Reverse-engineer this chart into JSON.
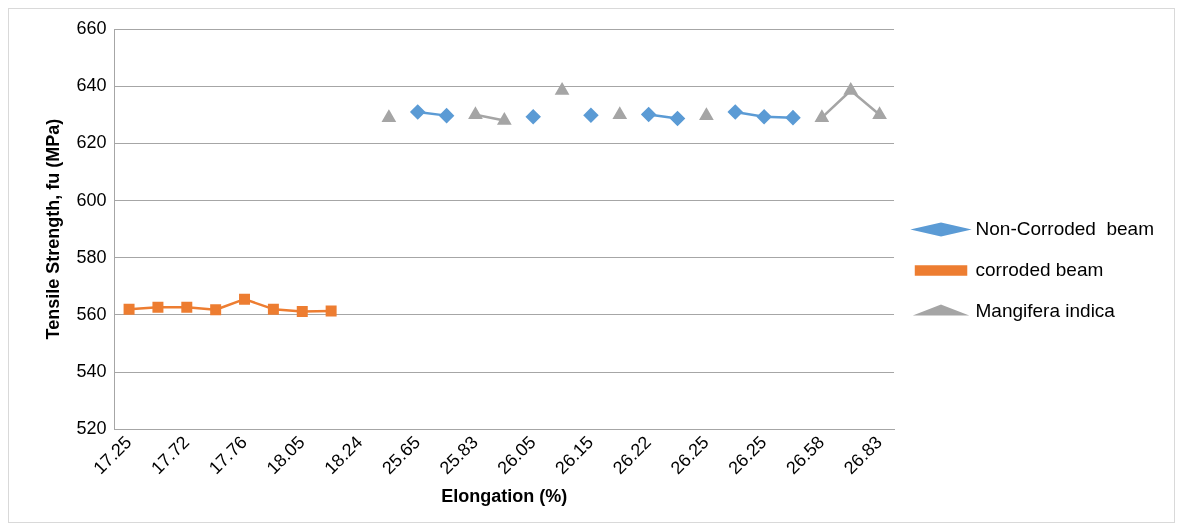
{
  "chart_data": {
    "type": "line",
    "xlabel": "Elongation (%)",
    "ylabel": "Tensile Strength, fu (MPa)",
    "categories": [
      "17.25",
      null,
      "17.72",
      null,
      "17.76",
      null,
      "18.05",
      null,
      "18.24",
      null,
      "25.65",
      null,
      "25.83",
      null,
      "26.05",
      null,
      "26.15",
      null,
      "26.22",
      null,
      "26.25",
      null,
      "26.25",
      null,
      "26.58",
      null,
      "26.83"
    ],
    "series": [
      {
        "name": "Non-Corroded  beam",
        "color": "#5b9bd5",
        "marker": "diamond",
        "values": [
          null,
          null,
          null,
          null,
          null,
          null,
          null,
          null,
          null,
          null,
          631,
          629.7,
          null,
          null,
          629.3,
          null,
          629.8,
          null,
          630.1,
          628.7,
          null,
          631,
          629.3,
          629,
          null,
          null,
          null
        ]
      },
      {
        "name": "corroded beam",
        "color": "#ed7d31",
        "marker": "square",
        "values": [
          562,
          562.7,
          562.7,
          561.8,
          565.5,
          562,
          561.2,
          561.4,
          null,
          null,
          null,
          null,
          null,
          null,
          null,
          null,
          null,
          null,
          null,
          null,
          null,
          null,
          null,
          null,
          null,
          null,
          null
        ]
      },
      {
        "name": "Mangifera indica",
        "color": "#a5a5a5",
        "marker": "triangle",
        "values": [
          null,
          null,
          null,
          null,
          null,
          null,
          null,
          null,
          null,
          629,
          null,
          null,
          630,
          628,
          null,
          638.5,
          null,
          630,
          null,
          null,
          629.7,
          null,
          null,
          null,
          629,
          638.5,
          630
        ]
      }
    ],
    "ylim": [
      520,
      660
    ],
    "yticks": [
      520,
      540,
      560,
      580,
      600,
      620,
      640,
      660
    ],
    "grid": "y",
    "legend": "right"
  }
}
